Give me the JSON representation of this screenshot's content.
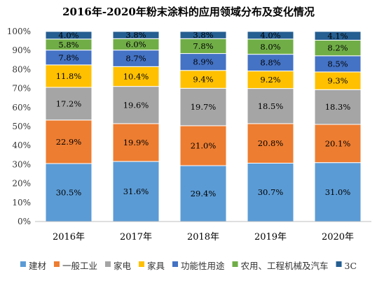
{
  "chart_data": {
    "type": "bar",
    "stacked": true,
    "title": "2016年-2020年粉末涂料的应用领域分布及变化情况",
    "xlabel": "",
    "ylabel": "",
    "ylim": [
      0,
      100
    ],
    "y_ticks": [
      "0%",
      "10%",
      "20%",
      "30%",
      "40%",
      "50%",
      "60%",
      "70%",
      "80%",
      "90%",
      "100%"
    ],
    "categories": [
      "2016年",
      "2017年",
      "2018年",
      "2019年",
      "2020年"
    ],
    "grid": false,
    "legend_position": "bottom",
    "series": [
      {
        "name": "建材",
        "color": "#5B9BD5",
        "values": [
          30.5,
          31.6,
          29.4,
          30.7,
          31.0
        ],
        "labels": [
          "30.5%",
          "31.6%",
          "29.4%",
          "30.7%",
          "31.0%"
        ]
      },
      {
        "name": "一般工业",
        "color": "#ED7D31",
        "values": [
          22.9,
          19.9,
          21.0,
          20.8,
          20.1
        ],
        "labels": [
          "22.9%",
          "19.9%",
          "21.0%",
          "20.8%",
          "20.1%"
        ]
      },
      {
        "name": "家电",
        "color": "#A5A5A5",
        "values": [
          17.2,
          19.6,
          19.7,
          18.5,
          18.3
        ],
        "labels": [
          "17.2%",
          "19.6%",
          "19.7%",
          "18.5%",
          "18.3%"
        ]
      },
      {
        "name": "家具",
        "color": "#FFC000",
        "values": [
          11.8,
          10.4,
          9.4,
          9.2,
          9.3
        ],
        "labels": [
          "11.8%",
          "10.4%",
          "9.4%",
          "9.2%",
          "9.3%"
        ]
      },
      {
        "name": "功能性用途",
        "color": "#4472C4",
        "values": [
          7.8,
          8.7,
          8.9,
          8.8,
          8.5
        ],
        "labels": [
          "7.8%",
          "8.7%",
          "8.9%",
          "8.8%",
          "8.5%"
        ]
      },
      {
        "name": "农用、工程机械及汽车",
        "color": "#70AD47",
        "values": [
          5.8,
          6.0,
          7.8,
          8.0,
          8.2
        ],
        "labels": [
          "5.8%",
          "6.0%",
          "7.8%",
          "8.0%",
          "8.2%"
        ]
      },
      {
        "name": "3C",
        "color": "#255E91",
        "values": [
          4.0,
          3.8,
          3.8,
          4.0,
          4.1
        ],
        "labels": [
          "4.0%",
          "3.8%",
          "3.8%",
          "4.0%",
          "4.1%"
        ]
      }
    ]
  }
}
